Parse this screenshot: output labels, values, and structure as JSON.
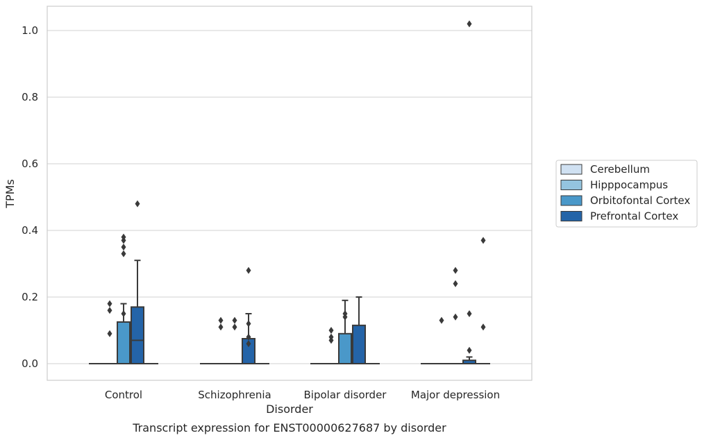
{
  "chart_data": {
    "type": "box",
    "xlabel": "Disorder",
    "ylabel": "TPMs",
    "caption": "Transcript expression for ENST00000627687 by disorder",
    "ylim": [
      -0.05,
      1.07
    ],
    "yticks": [
      0.0,
      0.2,
      0.4,
      0.6,
      0.8,
      1.0
    ],
    "ytick_labels": [
      "0.0",
      "0.2",
      "0.4",
      "0.6",
      "0.8",
      "1.0"
    ],
    "grid": "horizontal",
    "legend_position": "right",
    "categories": [
      "Control",
      "Schizophrenia",
      "Bipolar disorder",
      "Major depression"
    ],
    "series": [
      {
        "name": "Cerebellum",
        "color": "#d0e1f2",
        "boxes": [
          {
            "q1": 0,
            "median": 0,
            "q3": 0,
            "whisker_low": 0,
            "whisker_high": 0,
            "outliers": []
          },
          {
            "q1": 0,
            "median": 0,
            "q3": 0,
            "whisker_low": 0,
            "whisker_high": 0,
            "outliers": []
          },
          {
            "q1": 0,
            "median": 0,
            "q3": 0,
            "whisker_low": 0,
            "whisker_high": 0,
            "outliers": []
          },
          {
            "q1": 0,
            "median": 0,
            "q3": 0,
            "whisker_low": 0,
            "whisker_high": 0,
            "outliers": []
          }
        ]
      },
      {
        "name": "Hipppocampus",
        "color": "#94c4df",
        "boxes": [
          {
            "q1": 0,
            "median": 0,
            "q3": 0,
            "whisker_low": 0,
            "whisker_high": 0,
            "outliers": [
              0.09,
              0.16,
              0.18
            ]
          },
          {
            "q1": 0,
            "median": 0,
            "q3": 0,
            "whisker_low": 0,
            "whisker_high": 0,
            "outliers": [
              0.11,
              0.13
            ]
          },
          {
            "q1": 0,
            "median": 0,
            "q3": 0,
            "whisker_low": 0,
            "whisker_high": 0,
            "outliers": [
              0.07,
              0.08,
              0.1
            ]
          },
          {
            "q1": 0,
            "median": 0,
            "q3": 0,
            "whisker_low": 0,
            "whisker_high": 0,
            "outliers": [
              0.13
            ]
          }
        ]
      },
      {
        "name": "Orbitofontal Cortex",
        "color": "#4a98c9",
        "boxes": [
          {
            "q1": 0,
            "median": 0,
            "q3": 0.125,
            "whisker_low": 0,
            "whisker_high": 0.18,
            "outliers": [
              0.15,
              0.33,
              0.35,
              0.37,
              0.38
            ]
          },
          {
            "q1": 0,
            "median": 0,
            "q3": 0,
            "whisker_low": 0,
            "whisker_high": 0,
            "outliers": [
              0.11,
              0.13
            ]
          },
          {
            "q1": 0,
            "median": 0,
            "q3": 0.09,
            "whisker_low": 0,
            "whisker_high": 0.19,
            "outliers": [
              0.14,
              0.15
            ]
          },
          {
            "q1": 0,
            "median": 0,
            "q3": 0,
            "whisker_low": 0,
            "whisker_high": 0,
            "outliers": [
              0.14,
              0.24,
              0.28
            ]
          }
        ]
      },
      {
        "name": "Prefrontal Cortex",
        "color": "#2464a8",
        "boxes": [
          {
            "q1": 0,
            "median": 0.07,
            "q3": 0.17,
            "whisker_low": 0,
            "whisker_high": 0.31,
            "outliers": [
              0.48
            ]
          },
          {
            "q1": 0,
            "median": 0,
            "q3": 0.075,
            "whisker_low": 0,
            "whisker_high": 0.15,
            "outliers": [
              0.06,
              0.08,
              0.12,
              0.28
            ]
          },
          {
            "q1": 0,
            "median": 0,
            "q3": 0.115,
            "whisker_low": 0,
            "whisker_high": 0.2,
            "outliers": []
          },
          {
            "q1": 0,
            "median": 0,
            "q3": 0.01,
            "whisker_low": 0,
            "whisker_high": 0.02,
            "outliers": [
              0.04,
              0.15,
              1.02
            ]
          }
        ]
      },
      {
        "name": "",
        "color": "#2464a8",
        "boxes": [
          {
            "q1": 0,
            "median": 0,
            "q3": 0,
            "whisker_low": 0,
            "whisker_high": 0,
            "outliers": []
          },
          {
            "q1": 0,
            "median": 0,
            "q3": 0,
            "whisker_low": 0,
            "whisker_high": 0,
            "outliers": []
          },
          {
            "q1": 0,
            "median": 0,
            "q3": 0,
            "whisker_low": 0,
            "whisker_high": 0,
            "outliers": []
          },
          {
            "q1": 0,
            "median": 0,
            "q3": 0,
            "whisker_low": 0,
            "whisker_high": 0,
            "outliers": [
              0.11,
              0.37
            ]
          }
        ]
      }
    ]
  }
}
